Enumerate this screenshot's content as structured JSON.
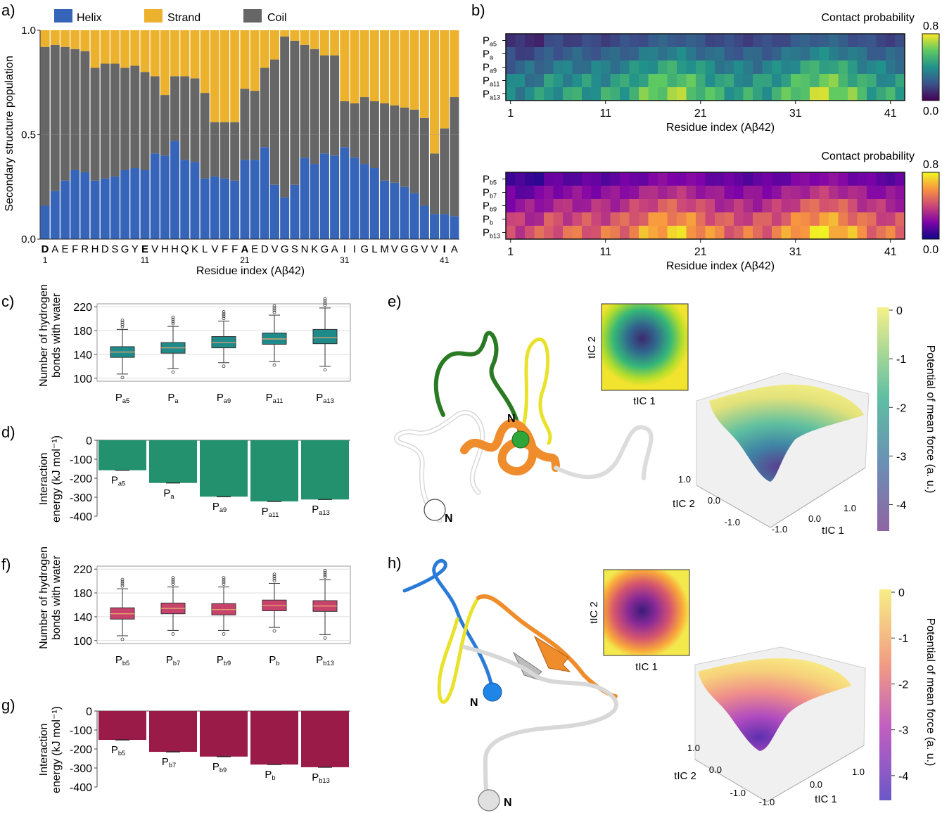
{
  "panel_labels": {
    "a": "a)",
    "b": "b)",
    "c": "c)",
    "d": "d)",
    "e": "e)",
    "f": "f)",
    "g": "g)",
    "h": "h)"
  },
  "colors": {
    "helix": "#3564b8",
    "strand": "#ecb22e",
    "coil": "#666666",
    "box_a": "#1e8a8a",
    "bar_a": "#23916d",
    "box_b": "#c8436b",
    "bar_b": "#9a1b47"
  },
  "chart_data": [
    {
      "id": "a",
      "type": "bar",
      "stacked": true,
      "ylabel": "Secondary structure population",
      "xlabel": "Residue index (Aβ42)",
      "ylim": [
        0,
        1.0
      ],
      "yticks": [
        "0.0",
        "0.5",
        "1.0"
      ],
      "legend": [
        "Helix",
        "Strand",
        "Coil"
      ],
      "categories": [
        "D",
        "A",
        "E",
        "F",
        "R",
        "H",
        "D",
        "S",
        "G",
        "Y",
        "E",
        "V",
        "H",
        "H",
        "Q",
        "K",
        "L",
        "V",
        "F",
        "F",
        "A",
        "E",
        "D",
        "V",
        "G",
        "S",
        "N",
        "K",
        "G",
        "A",
        "I",
        "I",
        "G",
        "L",
        "M",
        "V",
        "G",
        "G",
        "V",
        "V",
        "I",
        "A"
      ],
      "bold_categories": [
        0,
        10,
        20,
        40
      ],
      "xtick_numbers": [
        {
          "index": 0,
          "label": "1"
        },
        {
          "index": 10,
          "label": "11"
        },
        {
          "index": 20,
          "label": "21"
        },
        {
          "index": 30,
          "label": "31"
        },
        {
          "index": 40,
          "label": "41"
        }
      ],
      "series": [
        {
          "name": "Helix",
          "values": [
            0.16,
            0.23,
            0.28,
            0.33,
            0.32,
            0.28,
            0.29,
            0.3,
            0.33,
            0.34,
            0.33,
            0.41,
            0.4,
            0.47,
            0.38,
            0.37,
            0.29,
            0.3,
            0.29,
            0.28,
            0.38,
            0.38,
            0.44,
            0.26,
            0.2,
            0.26,
            0.39,
            0.36,
            0.41,
            0.4,
            0.44,
            0.39,
            0.36,
            0.34,
            0.28,
            0.27,
            0.25,
            0.22,
            0.16,
            0.12,
            0.12,
            0.11
          ]
        },
        {
          "name": "Coil",
          "values": [
            0.76,
            0.7,
            0.64,
            0.58,
            0.58,
            0.54,
            0.55,
            0.54,
            0.49,
            0.49,
            0.47,
            0.37,
            0.29,
            0.31,
            0.4,
            0.4,
            0.41,
            0.26,
            0.27,
            0.28,
            0.34,
            0.33,
            0.38,
            0.6,
            0.77,
            0.69,
            0.54,
            0.55,
            0.47,
            0.48,
            0.22,
            0.26,
            0.32,
            0.32,
            0.37,
            0.37,
            0.38,
            0.4,
            0.42,
            0.29,
            0.41,
            0.57
          ]
        },
        {
          "name": "Strand",
          "values": [
            0.08,
            0.07,
            0.08,
            0.09,
            0.1,
            0.18,
            0.16,
            0.16,
            0.18,
            0.17,
            0.2,
            0.22,
            0.31,
            0.22,
            0.22,
            0.23,
            0.3,
            0.44,
            0.44,
            0.44,
            0.28,
            0.29,
            0.18,
            0.14,
            0.03,
            0.05,
            0.07,
            0.09,
            0.12,
            0.12,
            0.34,
            0.35,
            0.32,
            0.34,
            0.35,
            0.36,
            0.37,
            0.38,
            0.42,
            0.59,
            0.47,
            0.32
          ]
        }
      ]
    },
    {
      "id": "b_top",
      "type": "heatmap",
      "title": "Contact probability",
      "xlabel": "Residue index (Aβ42)",
      "xticks": [
        "1",
        "11",
        "21",
        "31",
        "41"
      ],
      "rows": [
        {
          "main": "P",
          "sub": "a5"
        },
        {
          "main": "P",
          "sub": "a"
        },
        {
          "main": "P",
          "sub": "a9"
        },
        {
          "main": "P",
          "sub": "a11"
        },
        {
          "main": "P",
          "sub": "a13"
        }
      ],
      "colorbar": {
        "max": "0.8",
        "min": "0.0",
        "colormap": "viridis"
      },
      "row_base": [
        0.14,
        0.2,
        0.27,
        0.33,
        0.37
      ]
    },
    {
      "id": "b_bottom",
      "type": "heatmap",
      "title": "Contact probability",
      "xlabel": "Residue index (Aβ42)",
      "xticks": [
        "1",
        "11",
        "21",
        "31",
        "41"
      ],
      "rows": [
        {
          "main": "P",
          "sub": "b5"
        },
        {
          "main": "P",
          "sub": "b7"
        },
        {
          "main": "P",
          "sub": "b9"
        },
        {
          "main": "P",
          "sub": "b"
        },
        {
          "main": "P",
          "sub": "b13"
        }
      ],
      "colorbar": {
        "max": "0.8",
        "min": "0.0",
        "colormap": "plasma"
      },
      "row_base": [
        0.12,
        0.19,
        0.26,
        0.34,
        0.4
      ]
    },
    {
      "id": "c",
      "type": "box",
      "ylabel": [
        "Number of hydrogen",
        "bonds with water"
      ],
      "yticks": [
        "100",
        "140",
        "180",
        "220"
      ],
      "ylim": [
        95,
        225
      ],
      "categories": [
        {
          "main": "P",
          "sub": "a5"
        },
        {
          "main": "P",
          "sub": "a"
        },
        {
          "main": "P",
          "sub": "a9"
        },
        {
          "main": "P",
          "sub": "a11"
        },
        {
          "main": "P",
          "sub": "a13"
        }
      ],
      "boxes": [
        {
          "min": 107,
          "q1": 135,
          "median": 144,
          "q3": 153,
          "max": 182
        },
        {
          "min": 116,
          "q1": 142,
          "median": 151,
          "q3": 160,
          "max": 187
        },
        {
          "min": 126,
          "q1": 151,
          "median": 160,
          "q3": 170,
          "max": 196
        },
        {
          "min": 128,
          "q1": 157,
          "median": 166,
          "q3": 176,
          "max": 206
        },
        {
          "min": 120,
          "q1": 158,
          "median": 168,
          "q3": 182,
          "max": 218
        }
      ]
    },
    {
      "id": "d",
      "type": "bar",
      "ylabel": [
        "Interaction",
        "energy (kJ mol⁻¹)"
      ],
      "yticks": [
        "0",
        "-100",
        "-200",
        "-300",
        "-400"
      ],
      "ylim": [
        -400,
        0
      ],
      "categories": [
        {
          "main": "P",
          "sub": "a5"
        },
        {
          "main": "P",
          "sub": "a"
        },
        {
          "main": "P",
          "sub": "a9"
        },
        {
          "main": "P",
          "sub": "a11"
        },
        {
          "main": "P",
          "sub": "a13"
        }
      ],
      "values": [
        -158,
        -225,
        -297,
        -322,
        -312
      ]
    },
    {
      "id": "f",
      "type": "box",
      "ylabel": [
        "Number of hydrogen",
        "bonds with water"
      ],
      "yticks": [
        "100",
        "140",
        "180",
        "220"
      ],
      "ylim": [
        95,
        225
      ],
      "categories": [
        {
          "main": "P",
          "sub": "b5"
        },
        {
          "main": "P",
          "sub": "b7"
        },
        {
          "main": "P",
          "sub": "b9"
        },
        {
          "main": "P",
          "sub": "b"
        },
        {
          "main": "P",
          "sub": "b13"
        }
      ],
      "boxes": [
        {
          "min": 108,
          "q1": 136,
          "median": 145,
          "q3": 155,
          "max": 187
        },
        {
          "min": 117,
          "q1": 145,
          "median": 154,
          "q3": 163,
          "max": 190
        },
        {
          "min": 117,
          "q1": 143,
          "median": 152,
          "q3": 162,
          "max": 190
        },
        {
          "min": 122,
          "q1": 150,
          "median": 159,
          "q3": 168,
          "max": 196
        },
        {
          "min": 110,
          "q1": 149,
          "median": 158,
          "q3": 167,
          "max": 202
        }
      ]
    },
    {
      "id": "g",
      "type": "bar",
      "ylabel": [
        "Interaction",
        "energy (kJ mol⁻¹)"
      ],
      "yticks": [
        "0",
        "-100",
        "-200",
        "-300",
        "-400"
      ],
      "ylim": [
        -400,
        0
      ],
      "categories": [
        {
          "main": "P",
          "sub": "b5"
        },
        {
          "main": "P",
          "sub": "b7"
        },
        {
          "main": "P",
          "sub": "b9"
        },
        {
          "main": "P",
          "sub": "b"
        },
        {
          "main": "P",
          "sub": "b13"
        }
      ],
      "values": [
        -152,
        -215,
        -240,
        -282,
        -296
      ]
    },
    {
      "id": "e_surface",
      "type": "heatmap",
      "inset_xlabel": "tIC 1",
      "inset_ylabel": "tIC 2",
      "surf_xlabel": "tIC 1",
      "surf_ylabel": "tIC 2",
      "surf_xticks": [
        "-1.0",
        "0.0",
        "1.0"
      ],
      "surf_yticks": [
        "1.0",
        "0.0",
        "-1.0"
      ],
      "colorbar": {
        "label": "Potential of mean force (a. u.)",
        "ticks": [
          "0",
          "-1",
          "-2",
          "-3",
          "-4"
        ],
        "colormap": "viridis"
      },
      "structure_labels": [
        "N",
        "N"
      ]
    },
    {
      "id": "h_surface",
      "type": "heatmap",
      "inset_xlabel": "tIC 1",
      "inset_ylabel": "tIC 2",
      "surf_xlabel": "tIC 1",
      "surf_ylabel": "tIC 2",
      "surf_xticks": [
        "-1.0",
        "0.0",
        "1.0"
      ],
      "surf_yticks": [
        "1.0",
        "0.0",
        "-1.0"
      ],
      "colorbar": {
        "label": "Potential of mean force (a. u.)",
        "ticks": [
          "0",
          "-1",
          "-2",
          "-3",
          "-4"
        ],
        "colormap": "plasma"
      },
      "structure_labels": [
        "N",
        "N"
      ]
    }
  ]
}
